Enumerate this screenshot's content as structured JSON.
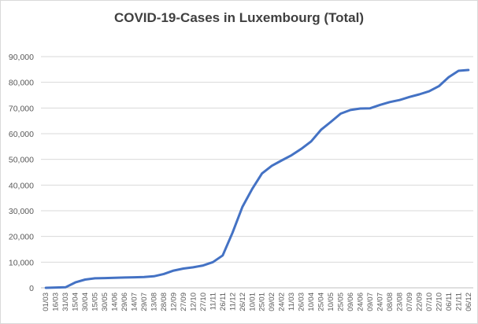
{
  "chart_data": {
    "type": "line",
    "title": "COVID-19-Cases in Luxembourg (Total)",
    "xlabel": "",
    "ylabel": "",
    "ylim": [
      0,
      90000
    ],
    "yticks": [
      "0",
      "10,000",
      "20,000",
      "30,000",
      "40,000",
      "50,000",
      "60,000",
      "70,000",
      "80,000",
      "90,000"
    ],
    "xtick_labels": [
      "01/03",
      "16/03",
      "31/03",
      "15/04",
      "30/04",
      "15/05",
      "30/05",
      "14/06",
      "29/06",
      "14/07",
      "29/07",
      "13/08",
      "28/08",
      "12/09",
      "27/09",
      "12/10",
      "27/10",
      "11/11",
      "26/11",
      "11/12",
      "26/12",
      "10/01",
      "25/01",
      "09/02",
      "24/02",
      "11/03",
      "26/03",
      "10/04",
      "25/04",
      "10/05",
      "25/05",
      "09/06",
      "24/06",
      "09/07",
      "24/07",
      "08/08",
      "23/08",
      "07/09",
      "22/09",
      "07/10",
      "22/10",
      "06/11",
      "21/11",
      "06/12"
    ],
    "grid": "horizontal",
    "legend": "none",
    "line_color": "#4472c4",
    "series": [
      {
        "x": [
          0,
          2,
          3,
          4,
          5,
          6,
          7,
          8,
          9,
          10,
          11,
          12,
          13,
          14,
          15,
          16,
          17,
          18,
          19,
          20,
          21,
          22,
          23,
          24,
          25,
          26,
          27,
          28,
          29,
          30,
          31,
          32,
          33,
          34,
          35,
          36,
          37,
          38,
          39,
          40,
          41,
          42,
          43
        ],
        "values": [
          0,
          200,
          2100,
          3200,
          3700,
          3800,
          3900,
          4000,
          4100,
          4200,
          4500,
          5400,
          6700,
          7500,
          8000,
          8700,
          10000,
          12600,
          21500,
          31500,
          38500,
          44500,
          47500,
          49600,
          51600,
          54100,
          57000,
          61500,
          64600,
          67800,
          69200,
          69800,
          69900,
          71200,
          72300,
          73100,
          74300,
          75300,
          76500,
          78500,
          82000,
          84500,
          84800
        ]
      }
    ]
  }
}
